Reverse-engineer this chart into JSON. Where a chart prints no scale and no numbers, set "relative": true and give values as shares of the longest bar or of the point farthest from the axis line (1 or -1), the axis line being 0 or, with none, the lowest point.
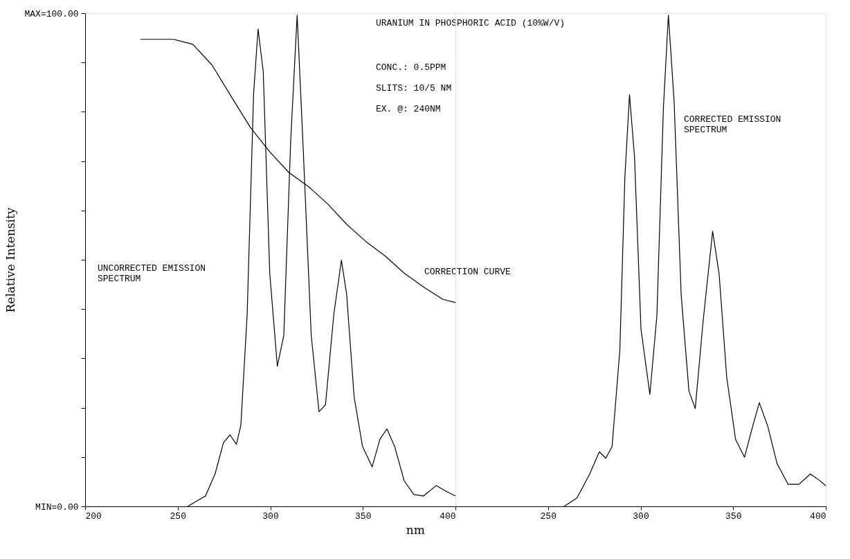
{
  "chart_data": [
    {
      "type": "line",
      "title": "URANIUM IN PHOSPHORIC ACID (10%W/V)",
      "xlabel": "nm",
      "ylabel": "Relative Intensity",
      "xlim": [
        200,
        400
      ],
      "xticks": [
        200,
        250,
        300,
        350,
        400
      ],
      "ylim": [
        0,
        100
      ],
      "yticks": [
        {
          "value": 0,
          "label": "MIN=0.00"
        },
        {
          "value": 10,
          "label": null
        },
        {
          "value": 20,
          "label": null
        },
        {
          "value": 30,
          "label": null
        },
        {
          "value": 40,
          "label": null
        },
        {
          "value": 50,
          "label": null
        },
        {
          "value": 60,
          "label": null
        },
        {
          "value": 70,
          "label": null
        },
        {
          "value": 80,
          "label": null
        },
        {
          "value": 90,
          "label": null
        },
        {
          "value": 100,
          "label": "MAX=100.00"
        }
      ],
      "annotations": [
        "CONC.:   0.5PPM",
        "SLITS:   10/5 NM",
        "EX. @:   240NM",
        "UNCORRECTED EMISSION\nSPECTRUM",
        "CORRECTION CURVE"
      ],
      "series": [
        {
          "color": "#000000",
          "x": [
            255.4,
            265,
            270.2,
            274.7,
            278.2,
            281.7,
            284.1,
            287.5,
            291,
            293.4,
            296.2,
            299.7,
            303.8,
            307.3,
            311,
            314.5,
            317.6,
            322.1,
            326.3,
            329.8,
            334.3,
            338.4,
            341.2,
            345.3,
            349.8,
            355,
            359.2,
            363,
            367.1,
            372.3,
            377.5,
            382.7,
            389.6,
            394.8,
            400
          ],
          "values": [
            0,
            2.1,
            6.6,
            12.9,
            14.5,
            12.6,
            16.4,
            38.9,
            83.8,
            96.8,
            88.1,
            47.3,
            28.4,
            34.7,
            74,
            99.6,
            74,
            34.7,
            19.2,
            20.6,
            38.9,
            49.9,
            43.1,
            22.1,
            12.2,
            8,
            13.6,
            15.7,
            12.2,
            5.2,
            2.4,
            2.1,
            4.2,
            3.1,
            2.1
          ]
        },
        {
          "color": "#000000",
          "x": [
            229.8,
            247.8,
            258.1,
            268.5,
            278.9,
            289.3,
            299.7,
            310,
            320.4,
            330.8,
            341.2,
            351.6,
            361.9,
            372.3,
            382.7,
            393.1,
            400
          ],
          "values": [
            94.7,
            94.7,
            93.7,
            89.5,
            83.1,
            76.8,
            71.9,
            67.7,
            64.9,
            61.4,
            57.2,
            53.7,
            50.8,
            47.3,
            44.5,
            42,
            41.3
          ]
        }
      ]
    },
    {
      "type": "line",
      "xlim": [
        200,
        400
      ],
      "xticks": [
        250,
        300,
        350,
        400
      ],
      "relative": true,
      "tick_labels": "x",
      "annotations": [
        "CORRECTED EMISSION\nSPECTRUM"
      ],
      "series": [
        {
          "color": "#000000",
          "x": [
            258.7,
            265.6,
            272.5,
            277.7,
            281.2,
            284.6,
            288.8,
            291.5,
            294,
            296.7,
            300.2,
            305,
            308.8,
            312.3,
            315,
            318.1,
            321.9,
            326.1,
            329.5,
            333.7,
            338.9,
            342.4,
            346.5,
            351.3,
            356.1,
            360.6,
            364.1,
            368.6,
            373.7,
            379.6,
            385.5,
            391.7,
            396.9,
            400
          ],
          "values": [
            0,
            0.017,
            0.066,
            0.111,
            0.098,
            0.122,
            0.319,
            0.67,
            0.838,
            0.712,
            0.361,
            0.228,
            0.389,
            0.81,
            1,
            0.824,
            0.431,
            0.235,
            0.199,
            0.375,
            0.56,
            0.473,
            0.263,
            0.136,
            0.1,
            0.164,
            0.211,
            0.164,
            0.087,
            0.045,
            0.045,
            0.066,
            0.052,
            0.042
          ]
        }
      ]
    }
  ]
}
